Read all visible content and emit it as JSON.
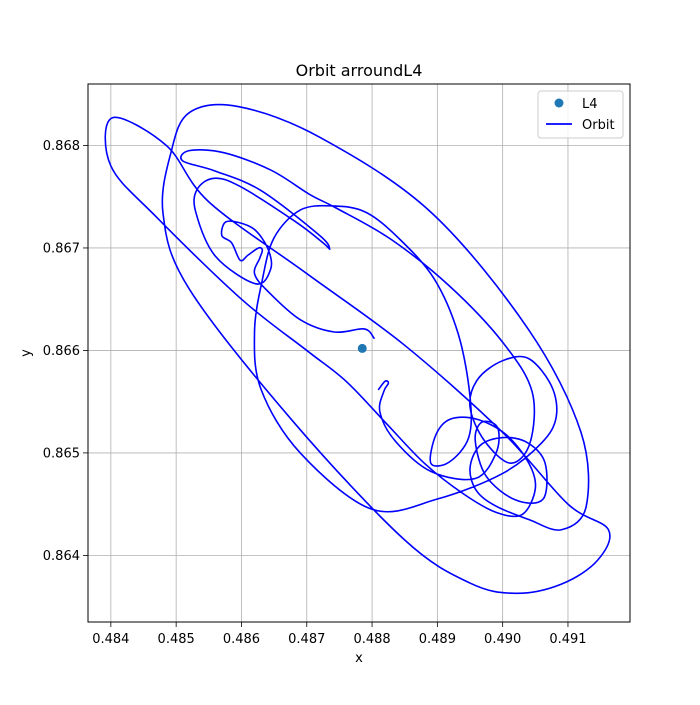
{
  "chart_data": {
    "type": "line",
    "title": "Orbit arroundL4",
    "xlabel": "x",
    "ylabel": "y",
    "xlim": [
      0.48365,
      0.49195
    ],
    "ylim": [
      0.86335,
      0.8686
    ],
    "grid": true,
    "legend_position": "upper-right",
    "x_ticks": [
      "0.484",
      "0.485",
      "0.486",
      "0.487",
      "0.488",
      "0.489",
      "0.490",
      "0.491"
    ],
    "y_ticks": [
      "0.864",
      "0.865",
      "0.866",
      "0.867",
      "0.868"
    ],
    "series": [
      {
        "name": "L4",
        "kind": "point",
        "color": "#1f77b4",
        "x": [
          0.48785
        ],
        "y": [
          0.86602
        ]
      },
      {
        "name": "Orbit",
        "kind": "line",
        "color": "#0000ff",
        "x": [
          0.48803,
          0.48788,
          0.48742,
          0.4869,
          0.4864,
          0.4862,
          0.48628,
          0.48632,
          0.48626,
          0.4861,
          0.48598,
          0.48585,
          0.4857,
          0.48575,
          0.48595,
          0.4862,
          0.4864,
          0.48645,
          0.48622,
          0.4856,
          0.4853,
          0.48532,
          0.48558,
          0.48598,
          0.48682,
          0.48725,
          0.48735,
          0.4872,
          0.4863,
          0.4856,
          0.4851,
          0.4852,
          0.48573,
          0.48645,
          0.48705,
          0.48745,
          0.4883,
          0.4892,
          0.49,
          0.49045,
          0.49042,
          0.49012,
          0.48972,
          0.4895,
          0.48962,
          0.49,
          0.4904,
          0.49075,
          0.49082,
          0.4906,
          0.49,
          0.489,
          0.488,
          0.4869,
          0.4863,
          0.4862,
          0.48632,
          0.4865,
          0.4869,
          0.4874,
          0.4879,
          0.4884,
          0.48895,
          0.48932,
          0.4895,
          0.48948,
          0.48918,
          0.4889,
          0.48898,
          0.4892,
          0.4896,
          0.49005,
          0.4904,
          0.4905,
          0.4903,
          0.4899,
          0.4894,
          0.4888,
          0.4882,
          0.4876,
          0.487,
          0.486,
          0.4847,
          0.484,
          0.48402,
          0.48485,
          0.4855,
          0.487,
          0.4885,
          0.49,
          0.491,
          0.49162,
          0.49145,
          0.4909,
          0.4902,
          0.4895,
          0.4885,
          0.4868,
          0.4852,
          0.4848,
          0.48492,
          0.4852,
          0.48595,
          0.4872,
          0.4889,
          0.4904,
          0.4912,
          0.49128,
          0.4909,
          0.4904,
          0.4899,
          0.4896,
          0.4895,
          0.48965,
          0.49,
          0.49038,
          0.49065,
          0.49062,
          0.4902,
          0.48975,
          0.48958,
          0.48968,
          0.48992,
          0.4899,
          0.48958,
          0.4889,
          0.48835,
          0.48812,
          0.48818,
          0.48825,
          0.4882,
          0.4881
        ],
        "y": [
          0.86612,
          0.86621,
          0.86618,
          0.8663,
          0.86658,
          0.86675,
          0.8669,
          0.86698,
          0.867,
          0.86693,
          0.86688,
          0.86705,
          0.86712,
          0.86725,
          0.86725,
          0.86718,
          0.867,
          0.8668,
          0.86665,
          0.86692,
          0.86735,
          0.86757,
          0.86768,
          0.8676,
          0.86726,
          0.86705,
          0.86699,
          0.86712,
          0.86756,
          0.86775,
          0.86785,
          0.86795,
          0.86793,
          0.86776,
          0.86752,
          0.86739,
          0.86708,
          0.86662,
          0.86608,
          0.8656,
          0.8651,
          0.8649,
          0.86512,
          0.86545,
          0.86572,
          0.8659,
          0.86592,
          0.86565,
          0.86535,
          0.8651,
          0.8648,
          0.86455,
          0.86445,
          0.865,
          0.86562,
          0.86618,
          0.86669,
          0.8671,
          0.86737,
          0.86741,
          0.86735,
          0.8671,
          0.8667,
          0.86616,
          0.86555,
          0.86515,
          0.86491,
          0.8649,
          0.86518,
          0.86533,
          0.86533,
          0.86518,
          0.8649,
          0.86465,
          0.8644,
          0.86442,
          0.8646,
          0.8649,
          0.8653,
          0.8657,
          0.866,
          0.8665,
          0.8673,
          0.8678,
          0.86827,
          0.868,
          0.86745,
          0.86675,
          0.86605,
          0.8652,
          0.8645,
          0.86425,
          0.86395,
          0.86372,
          0.86363,
          0.86373,
          0.86415,
          0.8653,
          0.8666,
          0.86733,
          0.86793,
          0.86832,
          0.86838,
          0.86808,
          0.86735,
          0.8662,
          0.8652,
          0.86448,
          0.86425,
          0.86435,
          0.86448,
          0.86463,
          0.86485,
          0.86507,
          0.86515,
          0.8651,
          0.8649,
          0.86455,
          0.86454,
          0.86477,
          0.86512,
          0.8653,
          0.86525,
          0.865,
          0.86475,
          0.86482,
          0.86512,
          0.8654,
          0.8656,
          0.86568,
          0.8657,
          0.86562
        ]
      }
    ]
  }
}
